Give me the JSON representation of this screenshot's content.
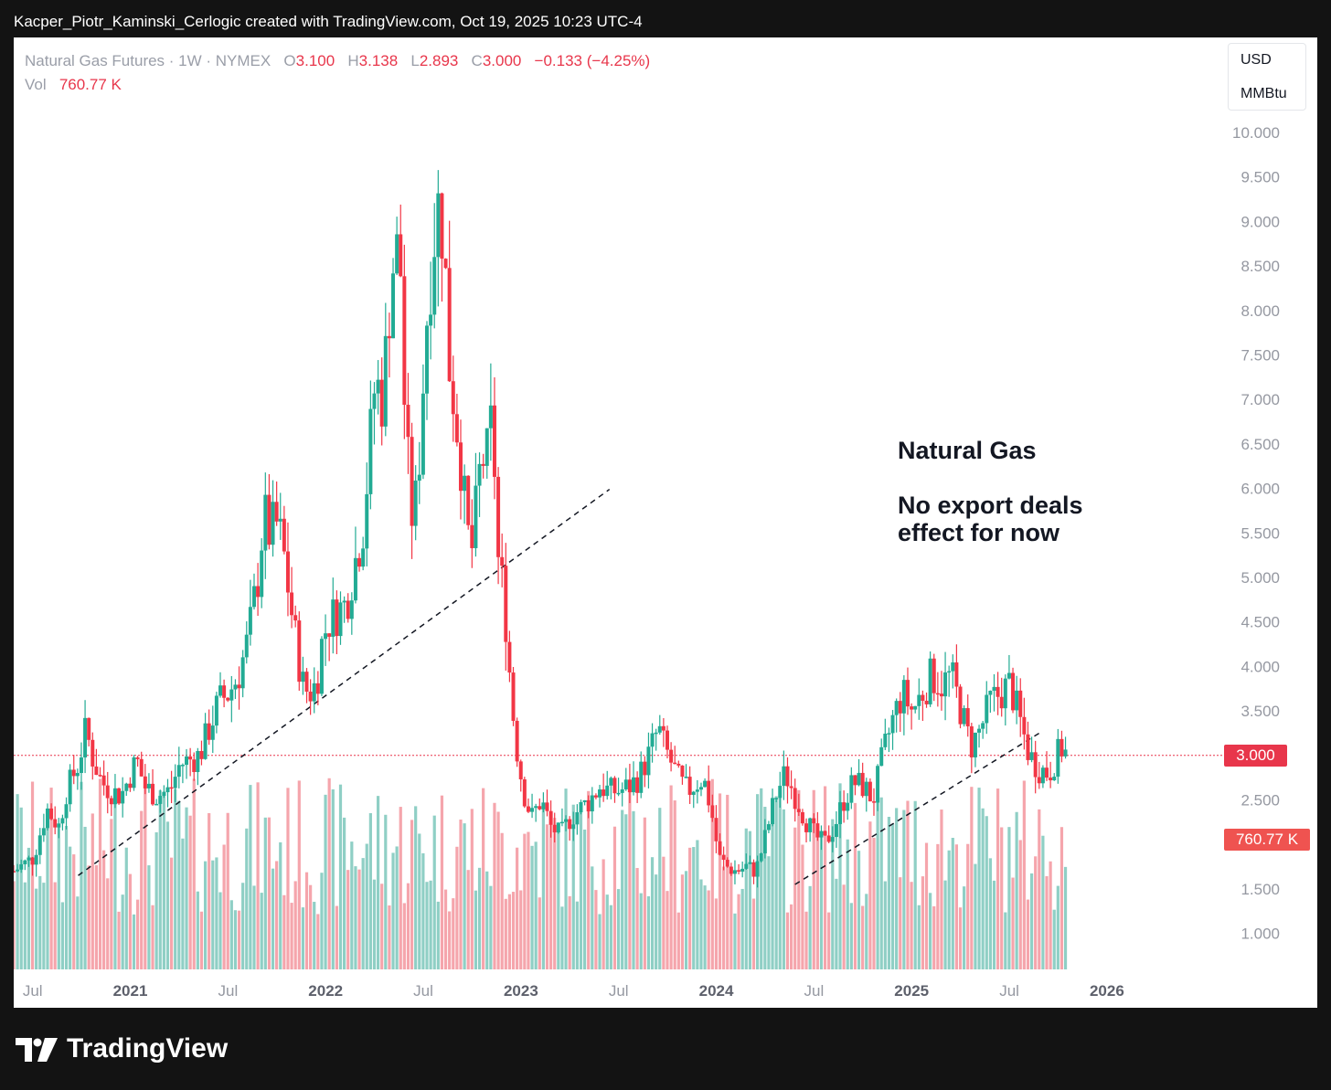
{
  "header": {
    "credit": "Kacper_Piotr_Kaminski_Cerlogic created with TradingView.com, Oct 19, 2025 10:23 UTC-4"
  },
  "legend": {
    "symbol": "Natural Gas Futures · 1W · NYMEX",
    "o_label": "O",
    "o_value": "3.100",
    "h_label": "H",
    "h_value": "3.138",
    "l_label": "L",
    "l_value": "2.893",
    "c_label": "C",
    "c_value": "3.000",
    "change": "−0.133 (−4.25%)",
    "vol_label": "Vol",
    "vol_value": "760.77 K"
  },
  "units": {
    "currency": "USD",
    "unit": "MMBtu"
  },
  "annotation": {
    "line1": "Natural Gas",
    "line2": "No export deals",
    "line3": "effect for now"
  },
  "badges": {
    "price": "3.000",
    "volume": "760.77 K"
  },
  "brand": {
    "logo": "tradingview-logo-icon",
    "name": "TradingView"
  },
  "colors": {
    "up": "#22ab94",
    "down": "#f23645",
    "up_vol": "#8fcfc5",
    "down_vol": "#f5a5ac",
    "text": "#131722",
    "axis": "#9598a1"
  },
  "chart_data": {
    "type": "candlestick",
    "interval": "1W",
    "y_axis_ticks": [
      "10.000",
      "9.500",
      "9.000",
      "8.500",
      "8.000",
      "7.500",
      "7.000",
      "6.500",
      "6.000",
      "5.500",
      "5.000",
      "4.500",
      "4.000",
      "3.500",
      "3.000",
      "2.500",
      "1.500",
      "1.000"
    ],
    "y_tick_values": [
      10,
      9.5,
      9,
      8.5,
      8,
      7.5,
      7,
      6.5,
      6,
      5.5,
      5,
      4.5,
      4,
      3.5,
      3,
      2.5,
      1.5,
      1
    ],
    "ylim": [
      0.6,
      10.3
    ],
    "x_axis_ticks": [
      {
        "label": "Jul",
        "t": 2020.5,
        "bold": false
      },
      {
        "label": "2021",
        "t": 2021.0,
        "bold": true
      },
      {
        "label": "Jul",
        "t": 2021.5,
        "bold": false
      },
      {
        "label": "2022",
        "t": 2022.0,
        "bold": true
      },
      {
        "label": "Jul",
        "t": 2022.5,
        "bold": false
      },
      {
        "label": "2023",
        "t": 2023.0,
        "bold": true
      },
      {
        "label": "Jul",
        "t": 2023.5,
        "bold": false
      },
      {
        "label": "2024",
        "t": 2024.0,
        "bold": true
      },
      {
        "label": "Jul",
        "t": 2024.5,
        "bold": false
      },
      {
        "label": "2025",
        "t": 2025.0,
        "bold": true
      },
      {
        "label": "Jul",
        "t": 2025.5,
        "bold": false
      },
      {
        "label": "2026",
        "t": 2026.0,
        "bold": true
      }
    ],
    "xlim": [
      2020.45,
      2026.3
    ],
    "last_price": 3.0,
    "price_key_points": [
      [
        2020.45,
        1.7
      ],
      [
        2020.55,
        1.85
      ],
      [
        2020.62,
        2.4
      ],
      [
        2020.68,
        2.2
      ],
      [
        2020.72,
        2.6
      ],
      [
        2020.78,
        2.9
      ],
      [
        2020.82,
        3.3
      ],
      [
        2020.85,
        3.0
      ],
      [
        2020.9,
        2.7
      ],
      [
        2020.95,
        2.6
      ],
      [
        2021.0,
        2.55
      ],
      [
        2021.05,
        2.8
      ],
      [
        2021.08,
        2.95
      ],
      [
        2021.12,
        2.65
      ],
      [
        2021.18,
        2.55
      ],
      [
        2021.25,
        2.6
      ],
      [
        2021.3,
        2.9
      ],
      [
        2021.4,
        3.0
      ],
      [
        2021.45,
        3.3
      ],
      [
        2021.5,
        3.6
      ],
      [
        2021.55,
        3.7
      ],
      [
        2021.6,
        3.9
      ],
      [
        2021.65,
        4.3
      ],
      [
        2021.7,
        5.0
      ],
      [
        2021.73,
        5.7
      ],
      [
        2021.76,
        5.5
      ],
      [
        2021.8,
        5.6
      ],
      [
        2021.83,
        5.3
      ],
      [
        2021.86,
        4.8
      ],
      [
        2021.9,
        4.2
      ],
      [
        2021.93,
        3.8
      ],
      [
        2021.96,
        3.7
      ],
      [
        2022.0,
        3.8
      ],
      [
        2022.03,
        4.3
      ],
      [
        2022.06,
        4.5
      ],
      [
        2022.1,
        4.6
      ],
      [
        2022.15,
        4.7
      ],
      [
        2022.2,
        5.2
      ],
      [
        2022.24,
        5.6
      ],
      [
        2022.27,
        6.4
      ],
      [
        2022.3,
        7.2
      ],
      [
        2022.34,
        7.0
      ],
      [
        2022.37,
        8.0
      ],
      [
        2022.4,
        8.7
      ],
      [
        2022.43,
        8.5
      ],
      [
        2022.45,
        7.0
      ],
      [
        2022.48,
        5.8
      ],
      [
        2022.5,
        5.6
      ],
      [
        2022.53,
        6.5
      ],
      [
        2022.56,
        7.8
      ],
      [
        2022.59,
        8.6
      ],
      [
        2022.62,
        9.2
      ],
      [
        2022.65,
        8.9
      ],
      [
        2022.68,
        7.4
      ],
      [
        2022.71,
        6.9
      ],
      [
        2022.74,
        6.3
      ],
      [
        2022.77,
        5.5
      ],
      [
        2022.8,
        5.3
      ],
      [
        2022.83,
        6.1
      ],
      [
        2022.86,
        6.4
      ],
      [
        2022.88,
        6.3
      ],
      [
        2022.9,
        6.9
      ],
      [
        2022.93,
        5.2
      ],
      [
        2022.96,
        4.8
      ],
      [
        2023.0,
        3.6
      ],
      [
        2023.03,
        3.0
      ],
      [
        2023.06,
        2.6
      ],
      [
        2023.1,
        2.3
      ],
      [
        2023.15,
        2.5
      ],
      [
        2023.2,
        2.2
      ],
      [
        2023.25,
        2.1
      ],
      [
        2023.3,
        2.3
      ],
      [
        2023.35,
        2.4
      ],
      [
        2023.4,
        2.5
      ],
      [
        2023.45,
        2.65
      ],
      [
        2023.5,
        2.6
      ],
      [
        2023.55,
        2.6
      ],
      [
        2023.6,
        2.65
      ],
      [
        2023.65,
        2.75
      ],
      [
        2023.7,
        3.0
      ],
      [
        2023.75,
        3.3
      ],
      [
        2023.78,
        3.1
      ],
      [
        2023.82,
        2.9
      ],
      [
        2023.86,
        2.7
      ],
      [
        2023.9,
        2.6
      ],
      [
        2023.95,
        2.7
      ],
      [
        2023.98,
        2.75
      ],
      [
        2024.02,
        2.4
      ],
      [
        2024.06,
        1.85
      ],
      [
        2024.1,
        1.75
      ],
      [
        2024.15,
        1.7
      ],
      [
        2024.2,
        1.75
      ],
      [
        2024.25,
        1.7
      ],
      [
        2024.3,
        2.1
      ],
      [
        2024.35,
        2.55
      ],
      [
        2024.4,
        2.8
      ],
      [
        2024.45,
        2.55
      ],
      [
        2024.5,
        2.3
      ],
      [
        2024.55,
        2.1
      ],
      [
        2024.6,
        2.0
      ],
      [
        2024.65,
        2.2
      ],
      [
        2024.7,
        2.5
      ],
      [
        2024.75,
        2.7
      ],
      [
        2024.8,
        2.65
      ],
      [
        2024.85,
        2.5
      ],
      [
        2024.9,
        3.0
      ],
      [
        2024.95,
        3.4
      ],
      [
        2025.0,
        3.7
      ],
      [
        2025.05,
        3.5
      ],
      [
        2025.1,
        3.7
      ],
      [
        2025.15,
        3.9
      ],
      [
        2025.2,
        3.8
      ],
      [
        2025.25,
        3.9
      ],
      [
        2025.3,
        3.5
      ],
      [
        2025.35,
        3.1
      ],
      [
        2025.4,
        3.3
      ],
      [
        2025.45,
        3.6
      ],
      [
        2025.5,
        3.7
      ],
      [
        2025.55,
        3.8
      ],
      [
        2025.6,
        3.4
      ],
      [
        2025.65,
        3.0
      ],
      [
        2025.7,
        2.85
      ],
      [
        2025.75,
        2.8
      ],
      [
        2025.78,
        2.95
      ],
      [
        2025.82,
        3.1
      ],
      [
        2025.84,
        3.0
      ]
    ],
    "trendlines": [
      {
        "from": [
          2020.78,
          1.65
        ],
        "to": [
          2023.5,
          5.99
        ],
        "style": "dashed"
      },
      {
        "from": [
          2024.45,
          1.55
        ],
        "to": [
          2025.7,
          3.25
        ],
        "style": "dashed"
      }
    ],
    "volume_label": "760.77 K"
  }
}
